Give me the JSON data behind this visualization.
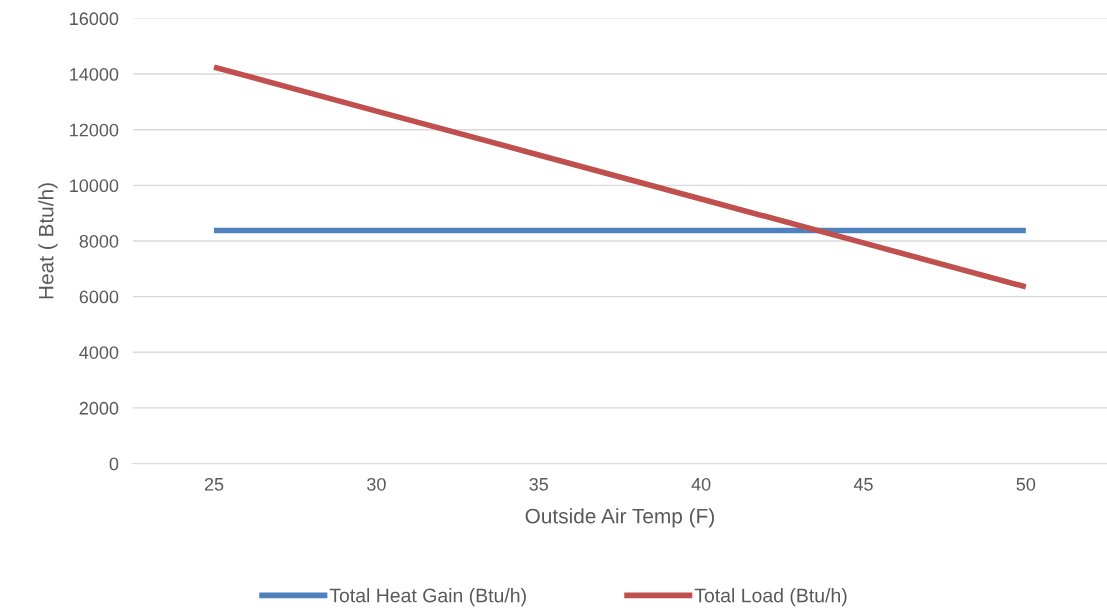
{
  "chart_data": {
    "type": "line",
    "xlabel": "Outside Air Temp (F)",
    "ylabel": "Heat ( Btu/h)",
    "categories": [
      "25",
      "30",
      "35",
      "40",
      "45",
      "50"
    ],
    "series": [
      {
        "name": "Total Heat Gain (Btu/h)",
        "color": "#4f81bd",
        "values": [
          8380,
          8380,
          8380,
          8380,
          8380,
          8380
        ]
      },
      {
        "name": "Total Load (Btu/h)",
        "color": "#c0504d",
        "values": [
          14250,
          12670,
          11090,
          9510,
          7930,
          6350
        ]
      }
    ],
    "ylim": [
      0,
      16000
    ],
    "yticks": [
      0,
      2000,
      4000,
      6000,
      8000,
      10000,
      12000,
      14000,
      16000
    ],
    "grid": "y",
    "legend": "bottom",
    "marker": "none",
    "line_style": "solid"
  }
}
